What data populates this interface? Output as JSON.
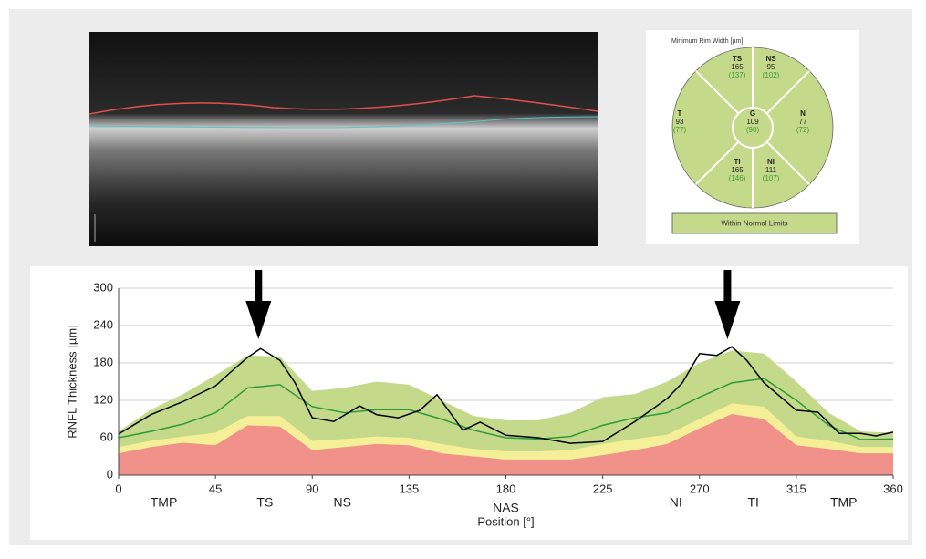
{
  "rim_width": {
    "title": "Minimum Rim Width [µm]",
    "sectors": [
      {
        "name": "TS",
        "value": 165,
        "reference": "(137)"
      },
      {
        "name": "NS",
        "value": 95,
        "reference": "(102)"
      },
      {
        "name": "T",
        "value": 93,
        "reference": "(77)"
      },
      {
        "name": "G",
        "value": 109,
        "reference": "(98)"
      },
      {
        "name": "N",
        "value": 77,
        "reference": "(72)"
      },
      {
        "name": "TI",
        "value": 165,
        "reference": "(146)"
      },
      {
        "name": "NI",
        "value": 111,
        "reference": "(107)"
      }
    ],
    "status": "Within Normal Limits"
  },
  "chart_data": {
    "type": "line",
    "x_label": "Position [°]",
    "y_label": "RNFL Thickness [µm]",
    "xlim": [
      0,
      360
    ],
    "xticks": [
      0,
      45,
      90,
      135,
      180,
      225,
      270,
      315,
      360
    ],
    "ylim": [
      0,
      300
    ],
    "yticks": [
      0,
      60,
      120,
      180,
      240,
      300
    ],
    "grid": true,
    "sector_labels": {
      "labels": [
        "TMP",
        "TS",
        "NS",
        "NAS",
        "NI",
        "TI",
        "TMP"
      ],
      "x": [
        21,
        68,
        104,
        180,
        259,
        295,
        337
      ]
    },
    "arrows_x": [
      65,
      283
    ],
    "series": [
      {
        "style": "area",
        "color": "#c5d98a",
        "x": [
          0,
          15,
          30,
          45,
          60,
          75,
          90,
          105,
          120,
          135,
          150,
          165,
          180,
          195,
          210,
          225,
          240,
          255,
          270,
          285,
          300,
          315,
          330,
          345,
          360
        ],
        "values": [
          70,
          105,
          130,
          160,
          192,
          190,
          135,
          140,
          150,
          145,
          120,
          95,
          88,
          88,
          100,
          125,
          130,
          150,
          180,
          200,
          195,
          150,
          100,
          70,
          68
        ]
      },
      {
        "style": "area",
        "color": "#f5f097",
        "x": [
          0,
          15,
          30,
          45,
          60,
          75,
          90,
          105,
          120,
          135,
          150,
          165,
          180,
          195,
          210,
          225,
          240,
          255,
          270,
          285,
          300,
          315,
          330,
          345,
          360
        ],
        "values": [
          45,
          55,
          62,
          68,
          95,
          95,
          55,
          58,
          62,
          60,
          50,
          42,
          38,
          38,
          40,
          50,
          58,
          65,
          90,
          115,
          110,
          62,
          55,
          45,
          45
        ]
      },
      {
        "style": "area",
        "color": "#f0918a",
        "x": [
          0,
          15,
          30,
          45,
          60,
          75,
          90,
          105,
          120,
          135,
          150,
          165,
          180,
          195,
          210,
          225,
          240,
          255,
          270,
          285,
          300,
          315,
          330,
          345,
          360
        ],
        "values": [
          35,
          45,
          52,
          48,
          80,
          78,
          40,
          45,
          50,
          48,
          35,
          30,
          25,
          25,
          25,
          32,
          40,
          50,
          75,
          98,
          90,
          48,
          42,
          35,
          35
        ]
      },
      {
        "style": "line",
        "color": "#2e9a3a",
        "x": [
          0,
          15,
          30,
          45,
          60,
          75,
          90,
          105,
          120,
          135,
          150,
          165,
          180,
          195,
          210,
          225,
          240,
          255,
          270,
          285,
          300,
          315,
          330,
          345,
          360
        ],
        "values": [
          60,
          70,
          82,
          100,
          140,
          145,
          110,
          100,
          105,
          105,
          90,
          72,
          60,
          58,
          62,
          80,
          92,
          100,
          125,
          148,
          155,
          120,
          80,
          57,
          58
        ]
      },
      {
        "style": "line",
        "color": "#000000",
        "x": [
          0,
          15,
          30,
          45,
          52,
          60,
          66,
          75,
          82,
          90,
          100,
          112,
          120,
          130,
          140,
          148,
          160,
          168,
          180,
          195,
          210,
          225,
          240,
          255,
          262,
          270,
          278,
          285,
          292,
          300,
          315,
          325,
          335,
          345,
          352,
          360
        ],
        "values": [
          66,
          97,
          118,
          143,
          165,
          189,
          203,
          184,
          148,
          92,
          86,
          111,
          97,
          92,
          104,
          129,
          72,
          85,
          64,
          60,
          51,
          54,
          86,
          123,
          148,
          195,
          192,
          206,
          184,
          148,
          104,
          101,
          67,
          67,
          63,
          69
        ]
      }
    ]
  }
}
